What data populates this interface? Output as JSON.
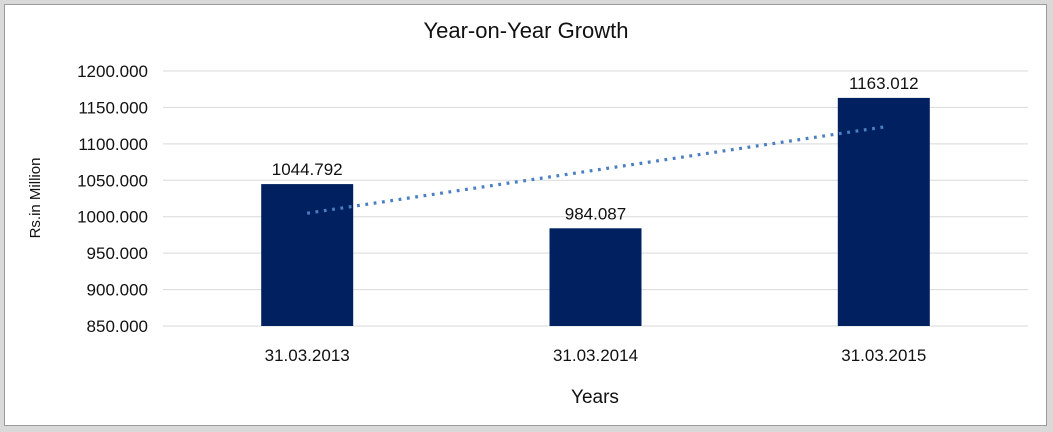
{
  "window": {
    "background_color": "#d9d9d9",
    "panel_color": "#ffffff",
    "panel_border_color": "#9b9b9b"
  },
  "chart_data": {
    "type": "bar",
    "title": "Year-on-Year Growth",
    "categories": [
      "31.03.2013",
      "31.03.2014",
      "31.03.2015"
    ],
    "values": [
      1044.792,
      984.087,
      1163.012
    ],
    "value_labels": [
      "1044.792",
      "984.087",
      "1163.012"
    ],
    "xlabel": "Years",
    "ylabel": "Rs.in Million",
    "ylim": [
      850,
      1200
    ],
    "ytick_step": 50,
    "ytick_labels": [
      "850.000",
      "900.000",
      "950.000",
      "1000.000",
      "1050.000",
      "1100.000",
      "1150.000",
      "1200.000"
    ],
    "grid": true,
    "legend": "none",
    "bar_color": "#002060",
    "gridline_color": "#d9d9d9",
    "text_color": "#111111",
    "trendline": {
      "type": "linear",
      "style": "dotted",
      "color": "#4a7fc1"
    },
    "decimals": 3
  }
}
